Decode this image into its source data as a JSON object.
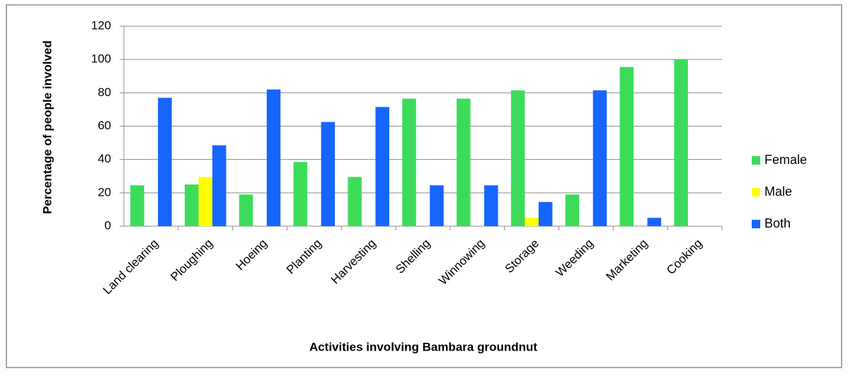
{
  "chart_data": {
    "type": "bar",
    "x_label": "Activities involving  Bambara groundnut",
    "y_label": "Percentage of people involved",
    "categories": [
      "Land clearing",
      "Ploughing",
      "Hoeing",
      "Planting",
      "Harvesting",
      "Shelling",
      "Winnowing",
      "Storage",
      "Weeding",
      "Marketing",
      "Cooking"
    ],
    "series": [
      {
        "name": "Female",
        "color": "#3cdc5a",
        "values": [
          24.5,
          25,
          19,
          38.5,
          29.5,
          76.5,
          76.5,
          81.5,
          19,
          95.5,
          100
        ]
      },
      {
        "name": "Male",
        "color": "#ffff00",
        "values": [
          0,
          29.5,
          0,
          0,
          0,
          0,
          0,
          5,
          0,
          0,
          0
        ]
      },
      {
        "name": "Both",
        "color": "#1765ff",
        "values": [
          77,
          48.5,
          82,
          62.5,
          71.5,
          24.5,
          24.5,
          14.5,
          81.5,
          5,
          0
        ]
      }
    ],
    "ylim": [
      0,
      120
    ],
    "yticks": [
      0,
      20,
      40,
      60,
      80,
      100,
      120
    ],
    "grid": true,
    "legend": "right"
  }
}
